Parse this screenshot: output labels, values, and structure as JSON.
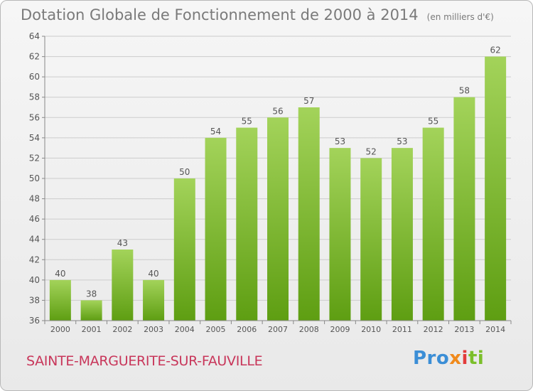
{
  "header": {
    "title": "Dotation Globale de Fonctionnement de 2000 à 2014",
    "unit": "(en milliers d'€)"
  },
  "footer": {
    "commune": "SAINTE-MARGUERITE-SUR-FAUVILLE",
    "logo": {
      "p1": "Pro",
      "p2": "x",
      "p3": "i",
      "p4": "ti"
    }
  },
  "colors": {
    "bar_top": "#a3d35a",
    "bar_bottom": "#5e9e12",
    "grid": "#cccccc",
    "text": "#555555"
  },
  "chart_data": {
    "type": "bar",
    "title": "Dotation Globale de Fonctionnement de 2000 à 2014",
    "subtitle": "(en milliers d'€)",
    "xlabel": "",
    "ylabel": "",
    "categories": [
      "2000",
      "2001",
      "2002",
      "2003",
      "2004",
      "2005",
      "2006",
      "2007",
      "2008",
      "2009",
      "2010",
      "2011",
      "2012",
      "2013",
      "2014"
    ],
    "values": [
      40,
      38,
      43,
      40,
      50,
      54,
      55,
      56,
      57,
      53,
      52,
      53,
      55,
      58,
      62
    ],
    "ylim": [
      36,
      64
    ],
    "yticks": [
      36,
      38,
      40,
      42,
      44,
      46,
      48,
      50,
      52,
      54,
      56,
      58,
      60,
      62,
      64
    ],
    "grid": true,
    "data_labels": true
  }
}
